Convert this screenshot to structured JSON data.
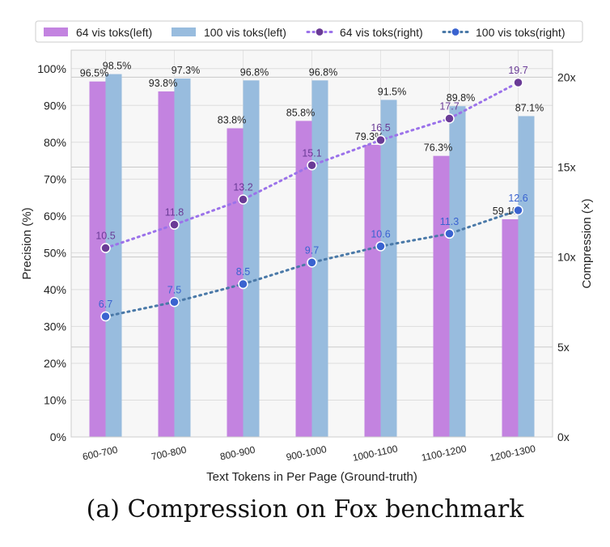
{
  "caption": "(a) Compression on Fox benchmark",
  "chart_data": {
    "type": "bar",
    "title": "",
    "xlabel": "Text Tokens in Per Page (Ground-truth)",
    "ylabel": "Precision (%)",
    "ylabel_right": "Compression (×)",
    "categories": [
      "600-700",
      "700-800",
      "800-900",
      "900-1000",
      "1000-1100",
      "1100-1200",
      "1200-1300"
    ],
    "ylim": [
      0,
      105
    ],
    "ylim_right": [
      0,
      21.5
    ],
    "yticks": [
      0,
      10,
      20,
      30,
      40,
      50,
      60,
      70,
      80,
      90,
      100
    ],
    "ytick_labels": [
      "0%",
      "10%",
      "20%",
      "30%",
      "40%",
      "50%",
      "60%",
      "70%",
      "80%",
      "90%",
      "100%"
    ],
    "yticks_right": [
      0,
      5,
      10,
      15,
      20
    ],
    "ytick_labels_right": [
      "0x",
      "5x",
      "10x",
      "15x",
      "20x"
    ],
    "grid": true,
    "legend_position": "top",
    "series": [
      {
        "name": "64 vis toks(left)",
        "kind": "bar",
        "axis": "left",
        "color": "#c383e0",
        "values": [
          96.5,
          93.8,
          83.8,
          85.8,
          79.3,
          76.3,
          59.1
        ],
        "labels": [
          "96.5%",
          "93.8%",
          "83.8%",
          "85.8%",
          "79.3%",
          "76.3%",
          "59.1%"
        ]
      },
      {
        "name": "100 vis toks(left)",
        "kind": "bar",
        "axis": "left",
        "color": "#98bcde",
        "values": [
          98.5,
          97.3,
          96.8,
          96.8,
          91.5,
          89.8,
          87.1
        ],
        "labels": [
          "98.5%",
          "97.3%",
          "96.8%",
          "96.8%",
          "91.5%",
          "89.8%",
          "87.1%"
        ]
      },
      {
        "name": "64 vis toks(right)",
        "kind": "line",
        "axis": "right",
        "color": "#9b72ea",
        "marker_color": "#6a3b96",
        "values": [
          10.5,
          11.8,
          13.2,
          15.1,
          16.5,
          17.7,
          19.7
        ],
        "labels": [
          "10.5",
          "11.8",
          "13.2",
          "15.1",
          "16.5",
          "17.7",
          "19.7"
        ]
      },
      {
        "name": "100 vis toks(right)",
        "kind": "line",
        "axis": "right",
        "color": "#4a79a8",
        "marker_color": "#3a63d0",
        "values": [
          6.7,
          7.5,
          8.5,
          9.7,
          10.6,
          11.3,
          12.6
        ],
        "labels": [
          "6.7",
          "7.5",
          "8.5",
          "9.7",
          "10.6",
          "11.3",
          "12.6"
        ]
      }
    ]
  }
}
